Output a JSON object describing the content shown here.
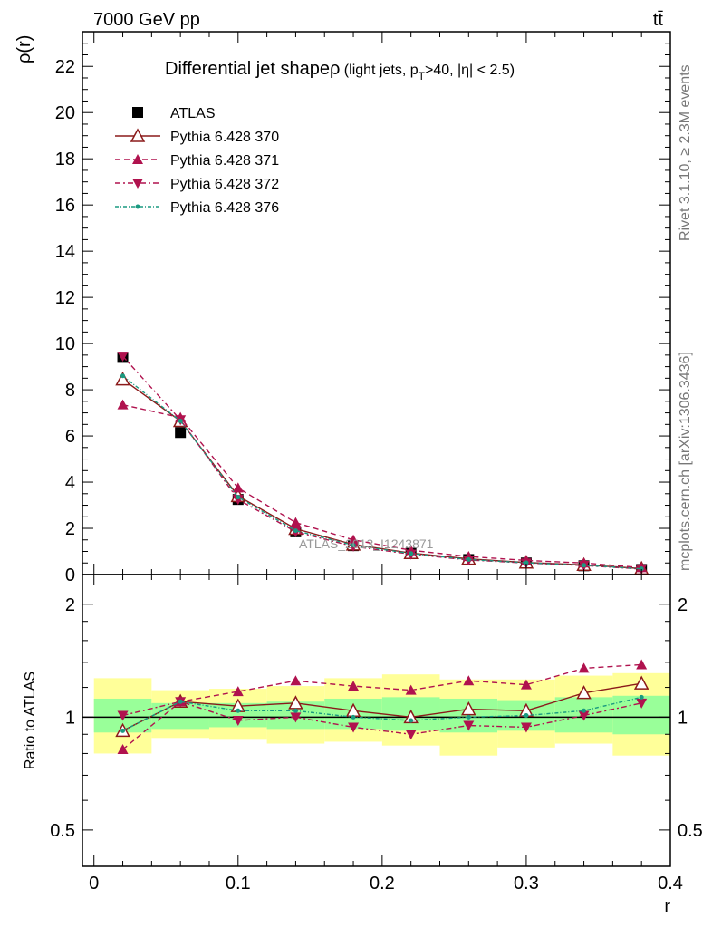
{
  "header": {
    "energy_label": "7000 GeV pp",
    "process_label": "tt̄"
  },
  "side_labels": {
    "rivet": "Rivet 3.1.10, ≥ 2.3M events",
    "mcplots": "mcplots.cern.ch [arXiv:1306.3436]"
  },
  "watermark": "ATLAS_2013_I1243871",
  "chart_data": [
    {
      "type": "line",
      "title": "Differential jet shape ρ (light jets, p_T>40, |η| < 2.5)",
      "title_parts": {
        "main": "Differential jet shape",
        "rho": "ρ",
        "paren_open": " (light jets, p",
        "sub": "T",
        "paren_close": ">40, |η| < 2.5)"
      },
      "ylabel": "ρ(r)",
      "xlabel": "",
      "xlim": [
        -0.008,
        0.4
      ],
      "ylim": [
        0,
        23.5
      ],
      "yticks": [
        0,
        2,
        4,
        6,
        8,
        10,
        12,
        14,
        16,
        18,
        20,
        22
      ],
      "legend_position": "top-left",
      "x": [
        0.02,
        0.06,
        0.1,
        0.14,
        0.18,
        0.22,
        0.26,
        0.3,
        0.34,
        0.38
      ],
      "series": [
        {
          "name": "ATLAS",
          "color": "#000000",
          "marker": "square",
          "values": [
            9.4,
            6.15,
            3.25,
            1.85,
            1.25,
            0.92,
            0.65,
            0.5,
            0.38,
            0.22
          ]
        },
        {
          "name": "Pythia 6.428 370",
          "color": "#8b1a1a",
          "marker": "open-triangle-up",
          "dash": "",
          "values": [
            8.45,
            6.65,
            3.4,
            1.98,
            1.3,
            0.93,
            0.68,
            0.52,
            0.42,
            0.26
          ]
        },
        {
          "name": "Pythia 6.428 371",
          "color": "#b0124e",
          "marker": "filled-triangle-up",
          "dash": "6,4",
          "values": [
            7.35,
            6.8,
            3.75,
            2.25,
            1.5,
            1.05,
            0.78,
            0.61,
            0.5,
            0.3
          ]
        },
        {
          "name": "Pythia 6.428 372",
          "color": "#b0124e",
          "marker": "filled-triangle-down",
          "dash": "6,3,2,3",
          "values": [
            9.45,
            6.7,
            3.25,
            1.85,
            1.22,
            0.88,
            0.63,
            0.5,
            0.39,
            0.24
          ]
        },
        {
          "name": "Pythia 6.428 376",
          "color": "#1a9a80",
          "marker": "dot",
          "dash": "4,2,1,2",
          "values": [
            8.6,
            6.65,
            3.35,
            1.9,
            1.27,
            0.91,
            0.65,
            0.51,
            0.4,
            0.25
          ]
        }
      ]
    },
    {
      "type": "line",
      "title": "",
      "ylabel": "Ratio to ATLAS",
      "xlabel": "r",
      "xlim": [
        -0.008,
        0.4
      ],
      "ylim": [
        0.4,
        2.4
      ],
      "log_y": true,
      "yticks": [
        0.5,
        1,
        2
      ],
      "xticks": [
        0,
        0.1,
        0.2,
        0.3,
        0.4
      ],
      "bin_edges": [
        0,
        0.04,
        0.08,
        0.12,
        0.16,
        0.2,
        0.24,
        0.28,
        0.32,
        0.36,
        0.4
      ],
      "uncertainty_bands": {
        "stat_color": "#99ff99",
        "total_color": "#ffff99",
        "stat_low": [
          0.91,
          0.93,
          0.94,
          0.93,
          0.93,
          0.92,
          0.91,
          0.92,
          0.91,
          0.9
        ],
        "stat_high": [
          1.12,
          1.09,
          1.09,
          1.1,
          1.12,
          1.13,
          1.12,
          1.11,
          1.13,
          1.14
        ],
        "tot_low": [
          0.8,
          0.88,
          0.87,
          0.85,
          0.86,
          0.84,
          0.79,
          0.83,
          0.85,
          0.79
        ],
        "tot_high": [
          1.27,
          1.18,
          1.19,
          1.21,
          1.27,
          1.3,
          1.26,
          1.26,
          1.29,
          1.31
        ]
      },
      "x": [
        0.02,
        0.06,
        0.1,
        0.14,
        0.18,
        0.22,
        0.26,
        0.3,
        0.34,
        0.38
      ],
      "series": [
        {
          "name": "Pythia 6.428 370",
          "color": "#8b1a1a",
          "marker": "open-triangle-up",
          "dash": "",
          "values": [
            0.92,
            1.1,
            1.07,
            1.09,
            1.04,
            1.0,
            1.05,
            1.04,
            1.16,
            1.23
          ]
        },
        {
          "name": "Pythia 6.428 371",
          "color": "#b0124e",
          "marker": "filled-triangle-up",
          "dash": "6,4",
          "values": [
            0.82,
            1.1,
            1.17,
            1.25,
            1.21,
            1.18,
            1.25,
            1.22,
            1.35,
            1.38
          ]
        },
        {
          "name": "Pythia 6.428 372",
          "color": "#b0124e",
          "marker": "filled-triangle-down",
          "dash": "6,3,2,3",
          "values": [
            1.01,
            1.1,
            0.98,
            1.0,
            0.94,
            0.9,
            0.95,
            0.94,
            1.01,
            1.09
          ]
        },
        {
          "name": "Pythia 6.428 376",
          "color": "#1a9a80",
          "marker": "dot",
          "dash": "4,2,1,2",
          "values": [
            0.92,
            1.1,
            1.04,
            1.04,
            1.0,
            0.98,
            1.0,
            1.01,
            1.04,
            1.13
          ]
        }
      ]
    }
  ]
}
